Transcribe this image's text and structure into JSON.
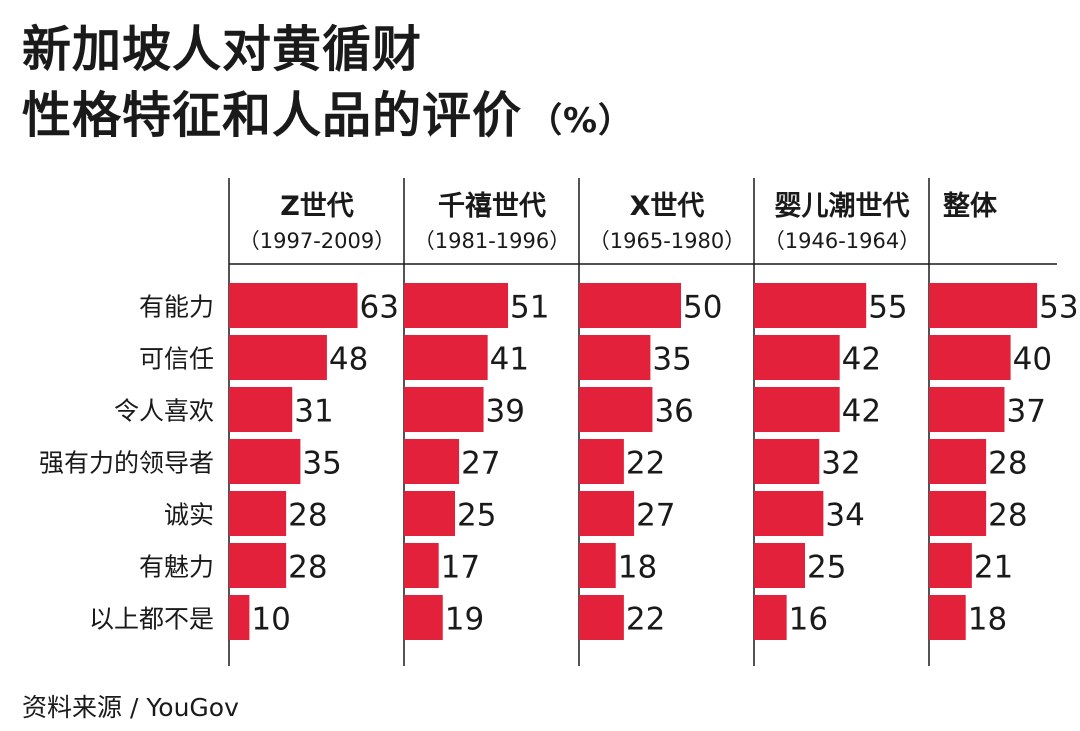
{
  "title_line1": "新加坡人对黄循财",
  "title_line2": "性格特征和人品的评价",
  "title_unit": "（%）",
  "source": "资料来源 / YouGov",
  "colors": {
    "bar": "#e3213a",
    "text": "#1a1a1a",
    "divider": "#1a1a1a"
  },
  "chart_data": {
    "type": "bar",
    "orientation": "horizontal",
    "categories": [
      "有能力",
      "可信任",
      "令人喜欢",
      "强有力的领导者",
      "诚实",
      "有魅力",
      "以上都不是"
    ],
    "series": [
      {
        "name": "Z世代",
        "period": "（1997-2009）",
        "values": [
          63,
          48,
          31,
          35,
          28,
          28,
          10
        ]
      },
      {
        "name": "千禧世代",
        "period": "（1981-1996）",
        "values": [
          51,
          41,
          39,
          27,
          25,
          17,
          19
        ]
      },
      {
        "name": "X世代",
        "period": "（1965-1980）",
        "values": [
          50,
          35,
          36,
          22,
          27,
          18,
          22
        ]
      },
      {
        "name": "婴儿潮世代",
        "period": "（1946-1964）",
        "values": [
          55,
          42,
          42,
          32,
          34,
          25,
          16
        ]
      },
      {
        "name": "整体",
        "period": "",
        "values": [
          53,
          40,
          37,
          28,
          28,
          21,
          18
        ]
      }
    ],
    "xlim": [
      0,
      100
    ],
    "grid": false,
    "legend": "none"
  }
}
